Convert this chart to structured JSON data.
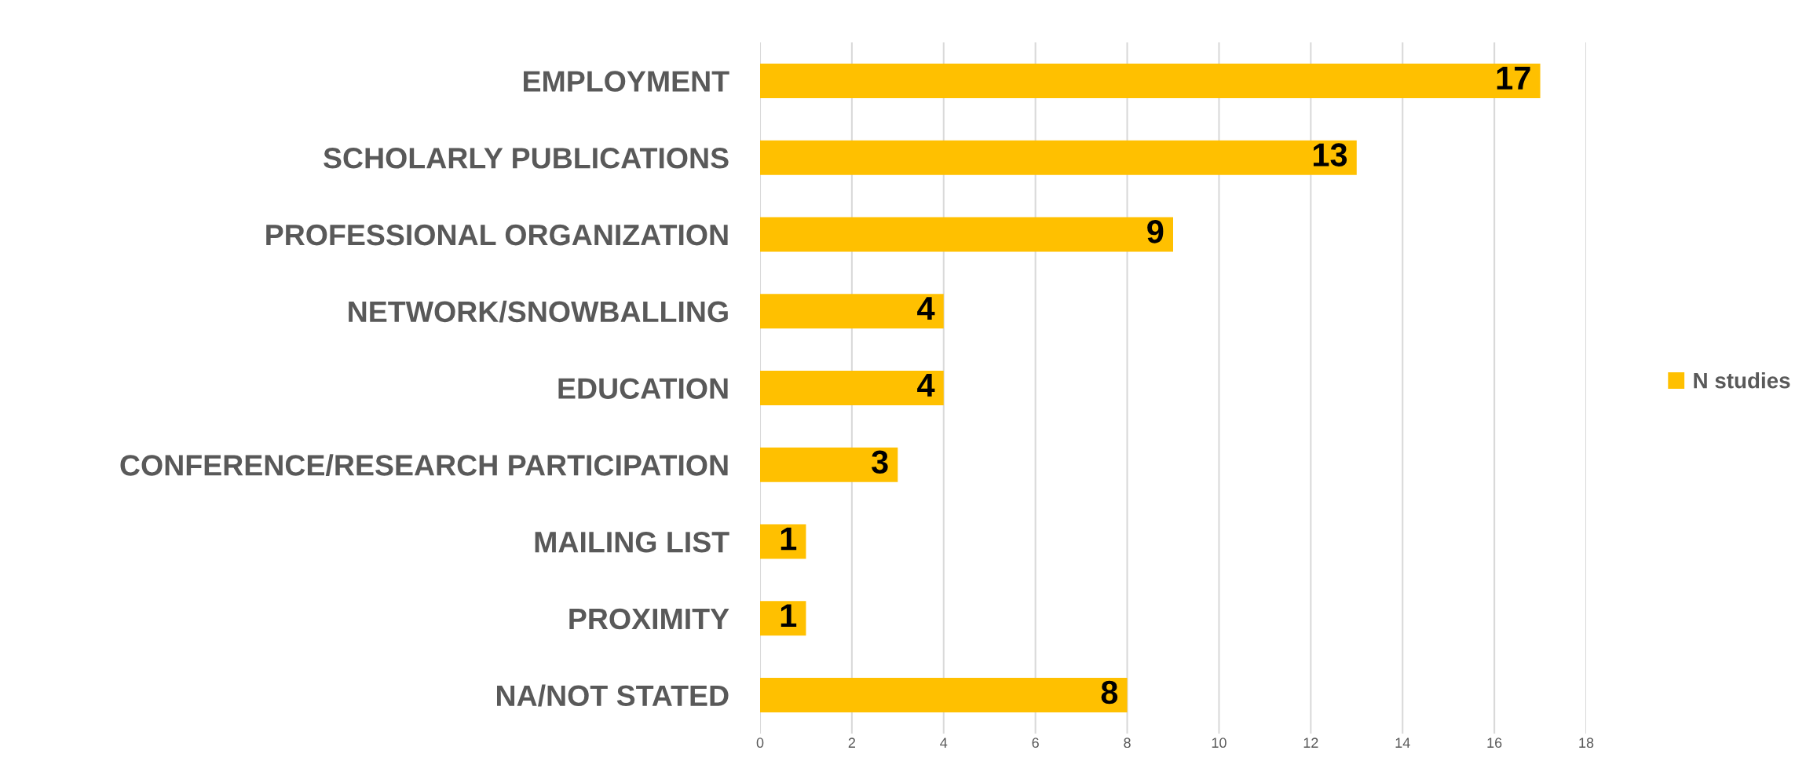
{
  "chart_data": {
    "type": "bar",
    "orientation": "horizontal",
    "categories": [
      "EMPLOYMENT",
      "SCHOLARLY PUBLICATIONS",
      "PROFESSIONAL ORGANIZATION",
      "NETWORK/SNOWBALLING",
      "EDUCATION",
      "CONFERENCE/RESEARCH PARTICIPATION",
      "MAILING LIST",
      "PROXIMITY",
      "NA/NOT STATED"
    ],
    "series": [
      {
        "name": "N studies",
        "color": "#ffc000",
        "values": [
          17,
          13,
          9,
          4,
          4,
          3,
          1,
          1,
          8
        ]
      }
    ],
    "xlim": [
      0,
      18
    ],
    "xticks": [
      0,
      2,
      4,
      6,
      8,
      10,
      12,
      14,
      16,
      18
    ],
    "grid": "x",
    "legend": "right",
    "data_labels": true
  }
}
